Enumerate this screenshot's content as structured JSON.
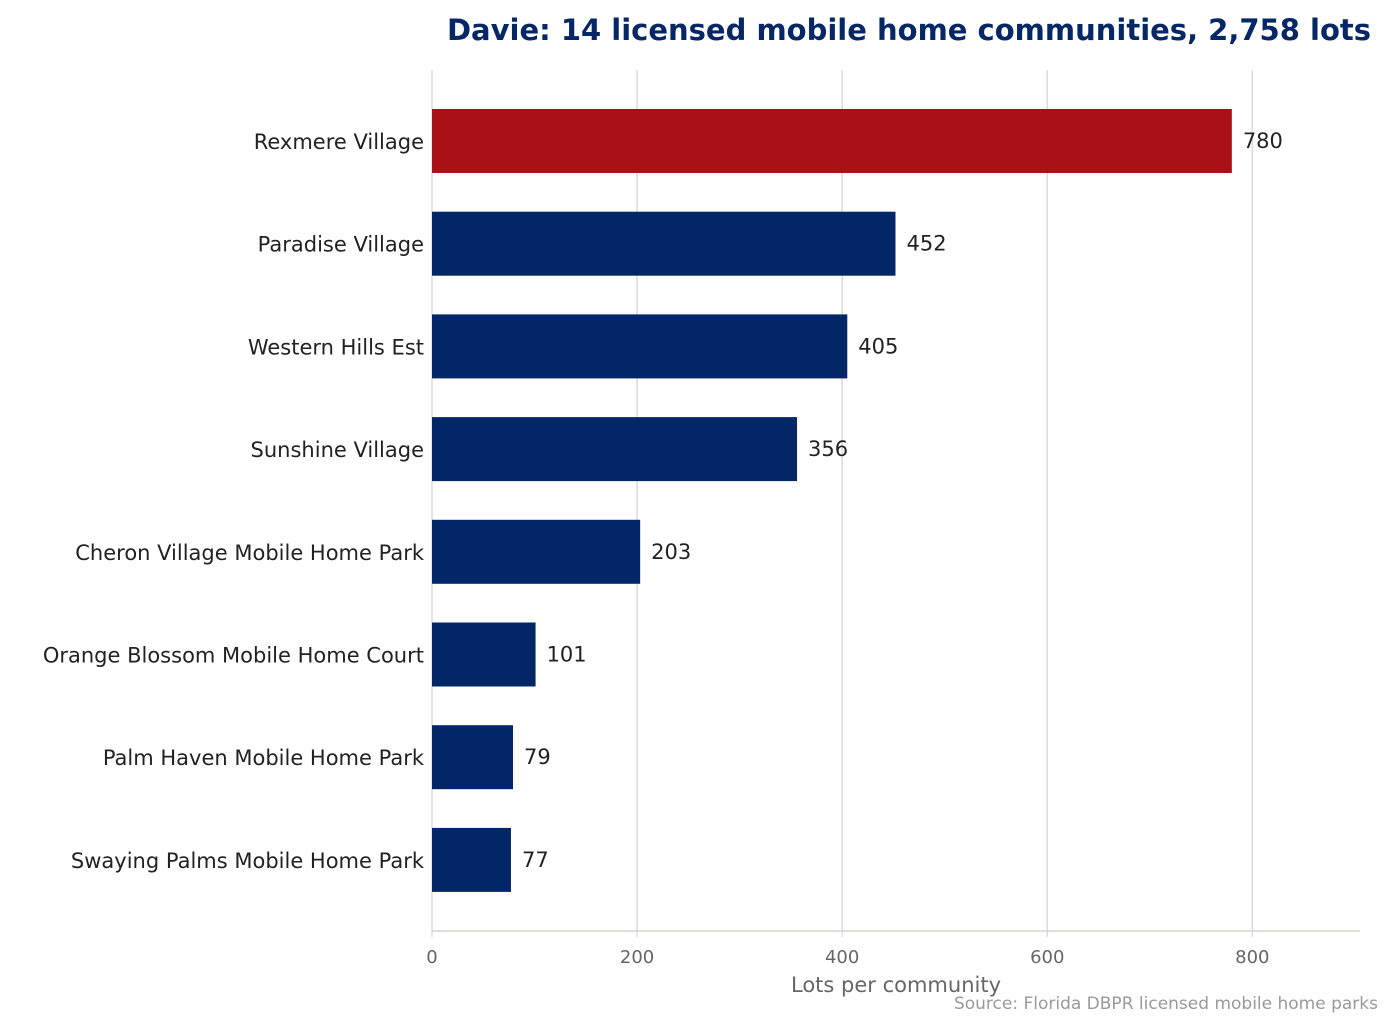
{
  "chart_data": {
    "type": "bar",
    "orientation": "horizontal",
    "title": "Davie: 14 licensed mobile home communities, 2,758 lots",
    "xlabel": "Lots per community",
    "ylabel": "",
    "source": "Source: Florida DBPR licensed mobile home parks",
    "categories": [
      "Rexmere Village",
      "Paradise Village",
      "Western Hills Est",
      "Sunshine Village",
      "Cheron Village Mobile Home Park",
      "Orange Blossom Mobile Home Court",
      "Palm Haven Mobile Home Park",
      "Swaying Palms Mobile Home Park"
    ],
    "values": [
      780,
      452,
      405,
      356,
      203,
      101,
      79,
      77
    ],
    "value_labels": [
      "780",
      "452",
      "405",
      "356",
      "203",
      "101",
      "79",
      "77"
    ],
    "highlight_index": 0,
    "xlim": [
      0,
      905
    ],
    "xticks": [
      0,
      200,
      400,
      600,
      800
    ],
    "xtick_labels": [
      "0",
      "200",
      "400",
      "600",
      "800"
    ],
    "grid": "vertical",
    "legend": "none"
  },
  "colors": {
    "title": "#062766",
    "bar": "#032766",
    "highlight": "#a81215",
    "grid": "#dddddd",
    "axis": "#d8d5c8"
  }
}
